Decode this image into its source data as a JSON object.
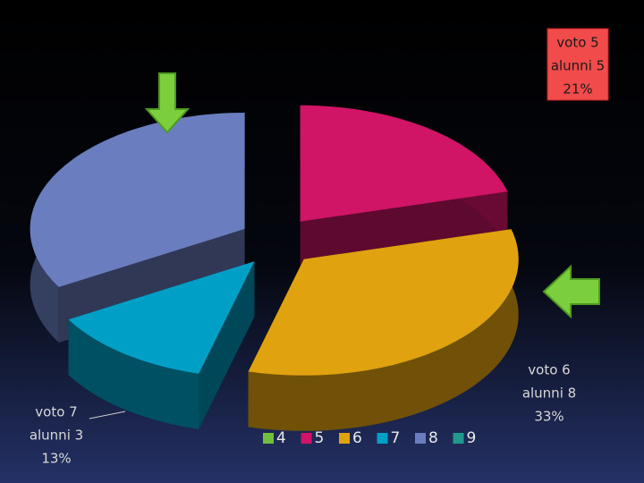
{
  "chart_data": {
    "type": "pie",
    "categories": [
      "4",
      "5",
      "6",
      "7",
      "8",
      "9"
    ],
    "values": [
      0,
      5,
      8,
      3,
      8,
      0
    ],
    "colors": [
      "#6fbf3a",
      "#d01466",
      "#e0a20e",
      "#00a0c6",
      "#6a7dbf",
      "#21998c"
    ],
    "value_labels": [
      null,
      [
        "voto 5",
        "alunni 5",
        "21%"
      ],
      [
        "voto 6",
        "alunni 8",
        "33%"
      ],
      [
        "voto 7",
        "alunni 3",
        "13%"
      ],
      null,
      null
    ],
    "legend": "bottom"
  }
}
